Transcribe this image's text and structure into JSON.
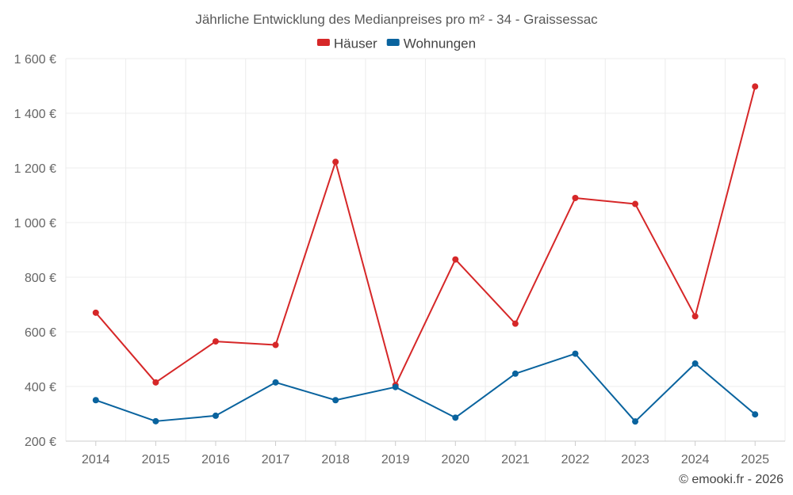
{
  "chart_data": {
    "type": "line",
    "title": "Jährliche Entwicklung des Medianpreises pro m² - 34 - Graissessac",
    "categories": [
      "2014",
      "2015",
      "2016",
      "2017",
      "2018",
      "2019",
      "2020",
      "2021",
      "2022",
      "2023",
      "2024",
      "2025"
    ],
    "series": [
      {
        "name": "Häuser",
        "color": "#d62728",
        "values": [
          670,
          415,
          565,
          552,
          1222,
          405,
          865,
          630,
          1090,
          1068,
          657,
          1498
        ]
      },
      {
        "name": "Wohnungen",
        "color": "#09639e",
        "values": [
          350,
          273,
          293,
          415,
          350,
          398,
          286,
          447,
          520,
          272,
          484,
          298
        ]
      }
    ],
    "ylim": [
      200,
      1600
    ],
    "yticks": [
      200,
      400,
      600,
      800,
      1000,
      1200,
      1400,
      1600
    ],
    "ytick_labels": [
      "200 €",
      "400 €",
      "600 €",
      "800 €",
      "1 000 €",
      "1 200 €",
      "1 400 €",
      "1 600 €"
    ],
    "xlabel": "",
    "ylabel": "",
    "grid": true,
    "legend_position": "top-center"
  },
  "credit": "© emooki.fr - 2026"
}
